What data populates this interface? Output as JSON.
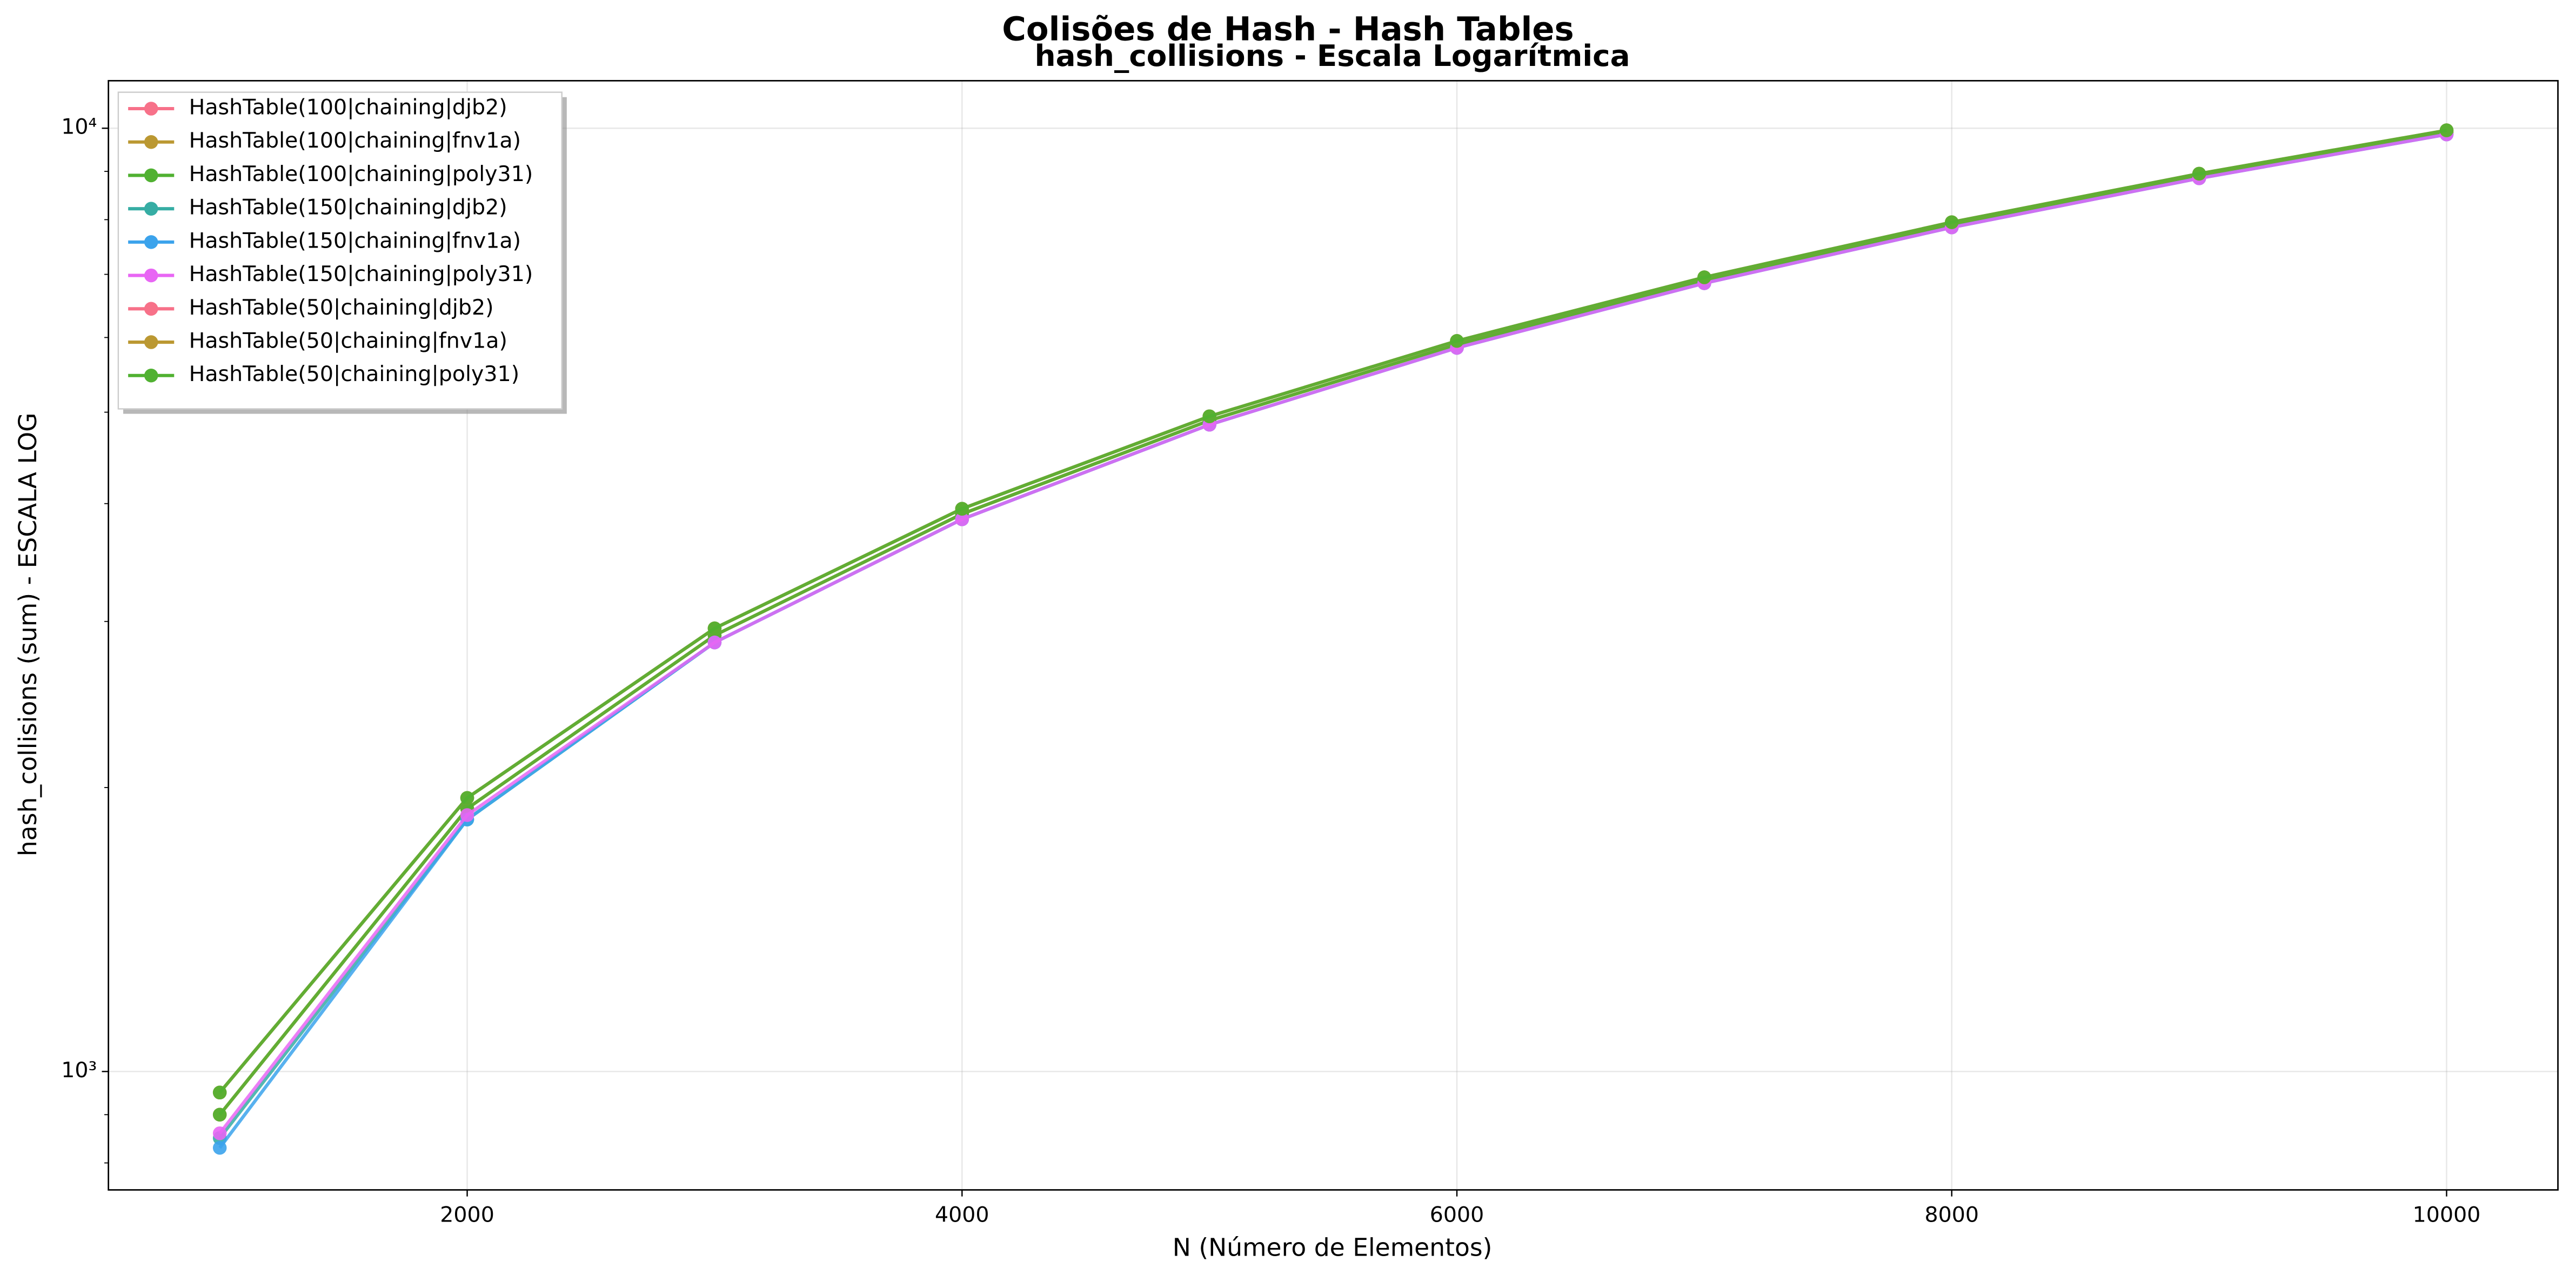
{
  "chart_data": {
    "type": "line",
    "suptitle": "Colisões de Hash - Hash Tables",
    "title": "hash_collisions - Escala Logarítmica",
    "xlabel": "N (Número de Elementos)",
    "ylabel": "hash_collisions (sum) - ESCALA LOG",
    "x": [
      1000,
      2000,
      3000,
      4000,
      5000,
      6000,
      7000,
      8000,
      9000,
      10000
    ],
    "xlim": [
      550,
      10450
    ],
    "xticks": [
      2000,
      4000,
      6000,
      8000,
      10000
    ],
    "ylim": [
      749,
      11230
    ],
    "yscale": "log",
    "yticks": [
      {
        "value": 1000,
        "label": "10³"
      },
      {
        "value": 10000,
        "label": "10⁴"
      }
    ],
    "yminorticks": [
      800,
      900,
      2000,
      3000,
      4000,
      5000,
      6000,
      7000,
      8000,
      9000
    ],
    "grid": true,
    "legend": "upper left",
    "series": [
      {
        "name": "HashTable(100|chaining|djb2)",
        "color": "#f77189",
        "values": [
          900,
          1900,
          2900,
          3900,
          4900,
          5900,
          6900,
          7900,
          8900,
          9900
        ]
      },
      {
        "name": "HashTable(100|chaining|fnv1a)",
        "color": "#bb9832",
        "values": [
          900,
          1900,
          2900,
          3900,
          4900,
          5900,
          6900,
          7900,
          8900,
          9900
        ]
      },
      {
        "name": "HashTable(100|chaining|poly31)",
        "color": "#50b131",
        "values": [
          900,
          1900,
          2900,
          3900,
          4900,
          5900,
          6900,
          7900,
          8900,
          9900
        ]
      },
      {
        "name": "HashTable(150|chaining|djb2)",
        "color": "#36ada4",
        "values": [
          850,
          1850,
          2850,
          3850,
          4850,
          5850,
          6850,
          7850,
          8850,
          9850
        ]
      },
      {
        "name": "HashTable(150|chaining|fnv1a)",
        "color": "#3ba3ec",
        "values": [
          830,
          1850,
          2850,
          3850,
          4850,
          5850,
          6850,
          7850,
          8850,
          9850
        ]
      },
      {
        "name": "HashTable(150|chaining|poly31)",
        "color": "#e866f4",
        "values": [
          860,
          1870,
          2850,
          3850,
          4850,
          5850,
          6850,
          7850,
          8850,
          9850
        ]
      },
      {
        "name": "HashTable(50|chaining|djb2)",
        "color": "#f77189",
        "values": [
          950,
          1950,
          2950,
          3950,
          4950,
          5950,
          6950,
          7950,
          8950,
          9950
        ]
      },
      {
        "name": "HashTable(50|chaining|fnv1a)",
        "color": "#bb9832",
        "values": [
          950,
          1950,
          2950,
          3950,
          4950,
          5950,
          6950,
          7950,
          8950,
          9950
        ]
      },
      {
        "name": "HashTable(50|chaining|poly31)",
        "color": "#50b131",
        "values": [
          950,
          1950,
          2950,
          3950,
          4950,
          5950,
          6950,
          7950,
          8950,
          9950
        ]
      }
    ]
  }
}
